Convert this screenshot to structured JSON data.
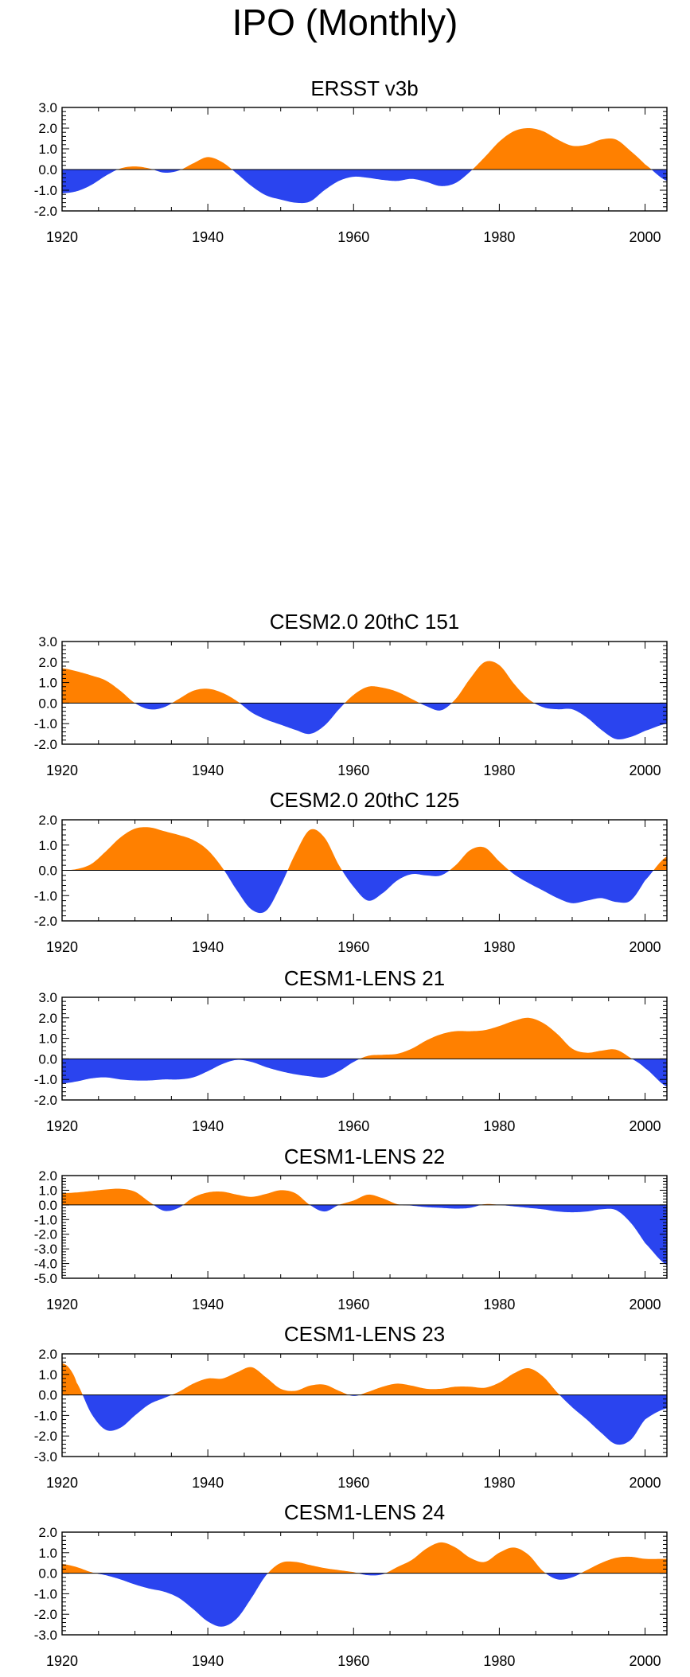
{
  "page": {
    "title": "IPO (Monthly)"
  },
  "colors": {
    "positive": "#ff8000",
    "negative": "#2a44ef",
    "axis": "#000000"
  },
  "chart_data": [
    {
      "type": "area",
      "title": "ERSST v3b",
      "xlabel": "",
      "ylabel": "",
      "xlim": [
        1920,
        2003
      ],
      "ylim": [
        -2.0,
        3.0
      ],
      "yticks": [
        "3.0",
        "2.0",
        "1.0",
        "0.0",
        "-1.0",
        "-2.0"
      ],
      "ytick_values": [
        3,
        2,
        1,
        0,
        -1,
        -2
      ],
      "xticks": [
        "1920",
        "1940",
        "1960",
        "1980",
        "2000"
      ],
      "xtick_values": [
        1920,
        1940,
        1960,
        1980,
        2000
      ],
      "fill_above_zero": "orange",
      "fill_below_zero": "blue",
      "x": [
        1920,
        1922,
        1924,
        1926,
        1928,
        1930,
        1932,
        1934,
        1936,
        1938,
        1940,
        1942,
        1944,
        1946,
        1948,
        1950,
        1952,
        1954,
        1956,
        1958,
        1960,
        1962,
        1964,
        1966,
        1968,
        1970,
        1972,
        1974,
        1976,
        1978,
        1980,
        1982,
        1984,
        1986,
        1988,
        1990,
        1992,
        1994,
        1996,
        1998,
        2000,
        2003
      ],
      "y": [
        -1.15,
        -1.05,
        -0.75,
        -0.3,
        0.05,
        0.15,
        0.05,
        -0.15,
        -0.05,
        0.3,
        0.6,
        0.35,
        -0.2,
        -0.8,
        -1.25,
        -1.45,
        -1.6,
        -1.55,
        -1.0,
        -0.55,
        -0.35,
        -0.4,
        -0.5,
        -0.55,
        -0.45,
        -0.6,
        -0.8,
        -0.65,
        -0.1,
        0.6,
        1.35,
        1.85,
        2.0,
        1.85,
        1.45,
        1.15,
        1.2,
        1.45,
        1.45,
        0.9,
        0.25,
        -0.55
      ]
    },
    {
      "type": "area",
      "title": "CESM2.0 20thC 151",
      "xlabel": "",
      "ylabel": "",
      "xlim": [
        1920,
        2003
      ],
      "ylim": [
        -2.0,
        3.0
      ],
      "yticks": [
        "3.0",
        "2.0",
        "1.0",
        "0.0",
        "-1.0",
        "-2.0"
      ],
      "ytick_values": [
        3,
        2,
        1,
        0,
        -1,
        -2
      ],
      "xticks": [
        "1920",
        "1940",
        "1960",
        "1980",
        "2000"
      ],
      "xtick_values": [
        1920,
        1940,
        1960,
        1980,
        2000
      ],
      "fill_above_zero": "orange",
      "fill_below_zero": "blue",
      "x": [
        1920,
        1922,
        1924,
        1926,
        1928,
        1930,
        1932,
        1934,
        1936,
        1938,
        1940,
        1942,
        1944,
        1946,
        1948,
        1950,
        1952,
        1954,
        1956,
        1958,
        1960,
        1962,
        1964,
        1966,
        1968,
        1970,
        1972,
        1974,
        1976,
        1978,
        1980,
        1982,
        1984,
        1986,
        1988,
        1990,
        1992,
        1994,
        1996,
        1998,
        2000,
        2003
      ],
      "y": [
        1.7,
        1.55,
        1.35,
        1.1,
        0.6,
        0.0,
        -0.3,
        -0.2,
        0.2,
        0.6,
        0.7,
        0.5,
        0.1,
        -0.45,
        -0.8,
        -1.05,
        -1.3,
        -1.5,
        -1.1,
        -0.3,
        0.4,
        0.8,
        0.75,
        0.55,
        0.2,
        -0.15,
        -0.35,
        0.2,
        1.2,
        2.0,
        1.85,
        0.95,
        0.2,
        -0.2,
        -0.3,
        -0.3,
        -0.7,
        -1.3,
        -1.75,
        -1.65,
        -1.35,
        -1.0
      ]
    },
    {
      "type": "area",
      "title": "CESM2.0 20thC 125",
      "xlabel": "",
      "ylabel": "",
      "xlim": [
        1920,
        2003
      ],
      "ylim": [
        -2.0,
        2.0
      ],
      "yticks": [
        "2.0",
        "1.0",
        "0.0",
        "-1.0",
        "-2.0"
      ],
      "ytick_values": [
        2,
        1,
        0,
        -1,
        -2
      ],
      "xticks": [
        "1920",
        "1940",
        "1960",
        "1980",
        "2000"
      ],
      "xtick_values": [
        1920,
        1940,
        1960,
        1980,
        2000
      ],
      "fill_above_zero": "orange",
      "fill_below_zero": "blue",
      "x": [
        1920,
        1922,
        1924,
        1926,
        1928,
        1930,
        1932,
        1934,
        1936,
        1938,
        1940,
        1942,
        1944,
        1946,
        1948,
        1950,
        1952,
        1954,
        1956,
        1958,
        1960,
        1962,
        1964,
        1966,
        1968,
        1970,
        1972,
        1974,
        1976,
        1978,
        1980,
        1982,
        1984,
        1986,
        1988,
        1990,
        1992,
        1994,
        1996,
        1998,
        2000,
        2003
      ],
      "y": [
        0.0,
        0.05,
        0.25,
        0.75,
        1.3,
        1.65,
        1.7,
        1.55,
        1.4,
        1.2,
        0.8,
        0.1,
        -0.8,
        -1.55,
        -1.6,
        -0.6,
        0.65,
        1.6,
        1.3,
        0.2,
        -0.65,
        -1.2,
        -0.9,
        -0.4,
        -0.15,
        -0.2,
        -0.2,
        0.2,
        0.8,
        0.9,
        0.35,
        -0.15,
        -0.5,
        -0.8,
        -1.1,
        -1.3,
        -1.2,
        -1.1,
        -1.25,
        -1.2,
        -0.4,
        0.55
      ]
    },
    {
      "type": "area",
      "title": "CESM1-LENS 21",
      "xlabel": "",
      "ylabel": "",
      "xlim": [
        1920,
        2003
      ],
      "ylim": [
        -2.0,
        3.0
      ],
      "yticks": [
        "3.0",
        "2.0",
        "1.0",
        "0.0",
        "-1.0",
        "-2.0"
      ],
      "ytick_values": [
        3,
        2,
        1,
        0,
        -1,
        -2
      ],
      "xticks": [
        "1920",
        "1940",
        "1960",
        "1980",
        "2000"
      ],
      "xtick_values": [
        1920,
        1940,
        1960,
        1980,
        2000
      ],
      "fill_above_zero": "orange",
      "fill_below_zero": "blue",
      "x": [
        1920,
        1922,
        1924,
        1926,
        1928,
        1930,
        1932,
        1934,
        1936,
        1938,
        1940,
        1942,
        1944,
        1946,
        1948,
        1950,
        1952,
        1954,
        1956,
        1958,
        1960,
        1962,
        1964,
        1966,
        1968,
        1970,
        1972,
        1974,
        1976,
        1978,
        1980,
        1982,
        1984,
        1986,
        1988,
        1990,
        1992,
        1994,
        1996,
        1998,
        2000,
        2003
      ],
      "y": [
        -1.2,
        -1.1,
        -0.95,
        -0.9,
        -1.0,
        -1.05,
        -1.05,
        -1.0,
        -1.0,
        -0.9,
        -0.6,
        -0.25,
        -0.05,
        -0.15,
        -0.4,
        -0.6,
        -0.75,
        -0.85,
        -0.9,
        -0.6,
        -0.15,
        0.15,
        0.2,
        0.25,
        0.5,
        0.9,
        1.2,
        1.35,
        1.35,
        1.4,
        1.6,
        1.85,
        2.0,
        1.75,
        1.2,
        0.5,
        0.3,
        0.4,
        0.45,
        0.05,
        -0.45,
        -1.35
      ]
    },
    {
      "type": "area",
      "title": "CESM1-LENS 22",
      "xlabel": "",
      "ylabel": "",
      "xlim": [
        1920,
        2003
      ],
      "ylim": [
        -5.0,
        2.0
      ],
      "yticks": [
        "2.0",
        "1.0",
        "0.0",
        "-1.0",
        "-2.0",
        "-3.0",
        "-4.0",
        "-5.0"
      ],
      "ytick_values": [
        2,
        1,
        0,
        -1,
        -2,
        -3,
        -4,
        -5
      ],
      "xticks": [
        "1920",
        "1940",
        "1960",
        "1980",
        "2000"
      ],
      "xtick_values": [
        1920,
        1940,
        1960,
        1980,
        2000
      ],
      "fill_above_zero": "orange",
      "fill_below_zero": "blue",
      "x": [
        1920,
        1922,
        1924,
        1926,
        1928,
        1930,
        1932,
        1934,
        1936,
        1938,
        1940,
        1942,
        1944,
        1946,
        1948,
        1950,
        1952,
        1954,
        1956,
        1958,
        1960,
        1962,
        1964,
        1966,
        1968,
        1970,
        1972,
        1974,
        1976,
        1978,
        1980,
        1982,
        1984,
        1986,
        1988,
        1990,
        1992,
        1994,
        1996,
        1998,
        2000,
        2003
      ],
      "y": [
        0.8,
        0.85,
        0.95,
        1.05,
        1.1,
        0.9,
        0.2,
        -0.4,
        -0.2,
        0.5,
        0.85,
        0.9,
        0.7,
        0.55,
        0.75,
        1.0,
        0.8,
        0.0,
        -0.45,
        0.0,
        0.3,
        0.7,
        0.45,
        0.05,
        -0.05,
        -0.15,
        -0.2,
        -0.25,
        -0.2,
        0.05,
        0.0,
        -0.1,
        -0.2,
        -0.3,
        -0.45,
        -0.5,
        -0.45,
        -0.3,
        -0.35,
        -1.2,
        -2.6,
        -4.1
      ]
    },
    {
      "type": "area",
      "title": "CESM1-LENS 23",
      "xlabel": "",
      "ylabel": "",
      "xlim": [
        1920,
        2003
      ],
      "ylim": [
        -3.0,
        2.0
      ],
      "yticks": [
        "2.0",
        "1.0",
        "0.0",
        "-1.0",
        "-2.0",
        "-3.0"
      ],
      "ytick_values": [
        2,
        1,
        0,
        -1,
        -2,
        -3
      ],
      "xticks": [
        "1920",
        "1940",
        "1960",
        "1980",
        "2000"
      ],
      "xtick_values": [
        1920,
        1940,
        1960,
        1980,
        2000
      ],
      "fill_above_zero": "orange",
      "fill_below_zero": "blue",
      "x": [
        1920,
        1921,
        1922,
        1924,
        1926,
        1928,
        1930,
        1932,
        1934,
        1936,
        1938,
        1940,
        1942,
        1944,
        1946,
        1948,
        1950,
        1952,
        1954,
        1956,
        1958,
        1960,
        1962,
        1964,
        1966,
        1968,
        1970,
        1972,
        1974,
        1976,
        1978,
        1980,
        1982,
        1984,
        1986,
        1988,
        1990,
        1992,
        1994,
        1996,
        1998,
        2000,
        2003
      ],
      "y": [
        1.55,
        1.3,
        0.6,
        -0.9,
        -1.7,
        -1.6,
        -1.0,
        -0.45,
        -0.15,
        0.15,
        0.55,
        0.8,
        0.8,
        1.1,
        1.35,
        0.85,
        0.3,
        0.2,
        0.45,
        0.5,
        0.2,
        -0.05,
        0.15,
        0.4,
        0.55,
        0.45,
        0.3,
        0.3,
        0.4,
        0.4,
        0.35,
        0.6,
        1.05,
        1.3,
        0.9,
        0.1,
        -0.6,
        -1.2,
        -1.85,
        -2.4,
        -2.2,
        -1.2,
        -0.65
      ]
    },
    {
      "type": "area",
      "title": "CESM1-LENS 24",
      "xlabel": "",
      "ylabel": "",
      "xlim": [
        1920,
        2003
      ],
      "ylim": [
        -3.0,
        2.0
      ],
      "yticks": [
        "2.0",
        "1.0",
        "0.0",
        "-1.0",
        "-2.0",
        "-3.0"
      ],
      "ytick_values": [
        2,
        1,
        0,
        -1,
        -2,
        -3
      ],
      "xticks": [
        "1920",
        "1940",
        "1960",
        "1980",
        "2000"
      ],
      "xtick_values": [
        1920,
        1940,
        1960,
        1980,
        2000
      ],
      "fill_above_zero": "orange",
      "fill_below_zero": "blue",
      "x": [
        1920,
        1922,
        1924,
        1926,
        1928,
        1930,
        1932,
        1934,
        1936,
        1938,
        1940,
        1942,
        1944,
        1946,
        1948,
        1950,
        1952,
        1954,
        1956,
        1958,
        1960,
        1962,
        1964,
        1966,
        1968,
        1970,
        1972,
        1974,
        1976,
        1978,
        1980,
        1982,
        1984,
        1986,
        1988,
        1990,
        1992,
        1994,
        1996,
        1998,
        2000,
        2003
      ],
      "y": [
        0.45,
        0.3,
        0.05,
        -0.1,
        -0.3,
        -0.55,
        -0.75,
        -0.9,
        -1.2,
        -1.75,
        -2.35,
        -2.6,
        -2.2,
        -1.2,
        -0.1,
        0.5,
        0.55,
        0.4,
        0.25,
        0.15,
        0.05,
        -0.1,
        -0.05,
        0.3,
        0.65,
        1.2,
        1.5,
        1.25,
        0.75,
        0.55,
        1.0,
        1.25,
        0.9,
        0.1,
        -0.3,
        -0.2,
        0.15,
        0.5,
        0.75,
        0.8,
        0.7,
        0.7
      ]
    }
  ]
}
